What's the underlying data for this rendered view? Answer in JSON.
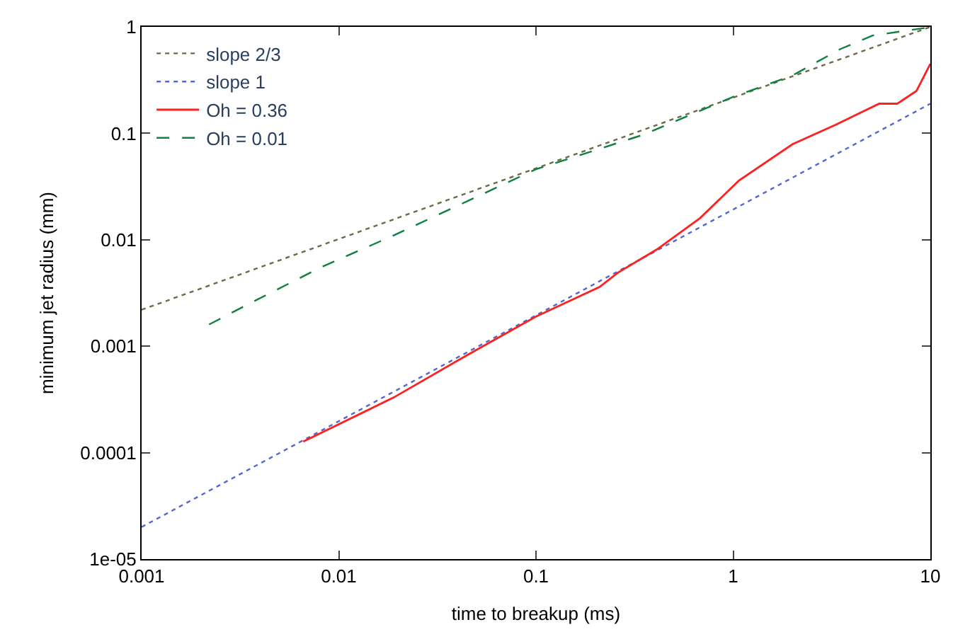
{
  "chart_data": {
    "type": "line",
    "xlabel": "time to breakup (ms)",
    "ylabel": "minimum jet radius (mm)",
    "log": "xy",
    "legend": "top left",
    "xlim": [
      0.001,
      10
    ],
    "xticks": [
      0.001,
      0.01,
      0.1,
      1,
      10
    ],
    "ylim": [
      1e-05,
      1
    ],
    "yticks": [
      {
        "value": 1e-05,
        "label": "1e-05"
      },
      0.0001,
      0.001,
      0.01,
      0.1,
      1
    ],
    "series": [
      {
        "name": "slope 2/3",
        "color": "#6b6b4a",
        "line_style": "dotted",
        "x": [
          0.001,
          10
        ],
        "values": [
          0.0022,
          1.0
        ]
      },
      {
        "name": "slope 1",
        "color": "#5566cc",
        "line_style": "dotted",
        "x": [
          0.001,
          10
        ],
        "values": [
          2e-05,
          0.19
        ]
      },
      {
        "name": "Oh = 0.36",
        "color": "#ff2020",
        "line_style": "solid",
        "x": [
          0.0066,
          0.019,
          0.044,
          0.1,
          0.21,
          0.26,
          0.41,
          0.68,
          1.07,
          2.0,
          3.3,
          5.5,
          6.8,
          8.5,
          10
        ],
        "values": [
          0.000127,
          0.00033,
          0.00081,
          0.0019,
          0.0036,
          0.0049,
          0.0081,
          0.016,
          0.036,
          0.079,
          0.12,
          0.19,
          0.19,
          0.25,
          0.45
        ]
      },
      {
        "name": "Oh = 0.01",
        "color": "#108040",
        "line_style": "dashed",
        "x": [
          0.0022,
          0.0035,
          0.0081,
          0.019,
          0.1,
          0.35,
          1.0,
          2.0,
          3.5,
          5.1,
          9.5
        ],
        "values": [
          0.0016,
          0.0025,
          0.0055,
          0.011,
          0.046,
          0.097,
          0.22,
          0.35,
          0.62,
          0.83,
          0.98
        ]
      }
    ]
  }
}
